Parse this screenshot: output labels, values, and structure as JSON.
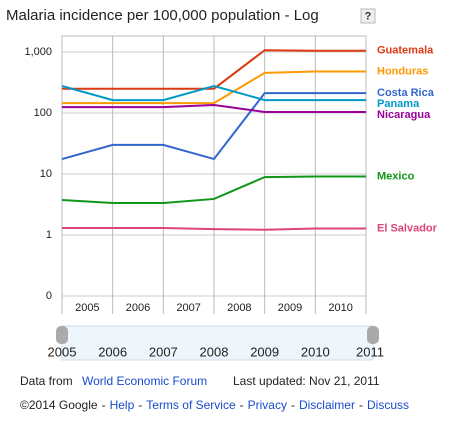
{
  "chart_data": {
    "type": "line",
    "title": "Malaria incidence per 100,000 population - Log",
    "help": "?",
    "log_scale": true,
    "grid": true,
    "x": [
      2005,
      2006,
      2007,
      2008,
      2009,
      2010,
      2011
    ],
    "xlim": [
      2005,
      2011
    ],
    "xticks": [
      2005,
      2006,
      2007,
      2008,
      2009,
      2010
    ],
    "ylim": [
      0.1,
      1830
    ],
    "yticks": [
      {
        "value": 0.1,
        "label": "0"
      },
      1,
      10,
      100,
      {
        "value": 1000,
        "label": "1,000"
      }
    ],
    "series": [
      {
        "name": "Guatemala",
        "color": "#dc3912",
        "values": [
          250,
          250,
          250,
          250,
          1070,
          1050,
          1050
        ]
      },
      {
        "name": "Honduras",
        "color": "#ff9900",
        "values": [
          145,
          145,
          145,
          145,
          455,
          480,
          480
        ]
      },
      {
        "name": "Costa Rica",
        "color": "#3366cc",
        "values": [
          17.6,
          30,
          30,
          17.6,
          212,
          212,
          212
        ]
      },
      {
        "name": "Panama",
        "color": "#0099c6",
        "values": [
          277,
          163,
          163,
          277,
          163,
          163,
          163
        ]
      },
      {
        "name": "Nicaragua",
        "color": "#990099",
        "values": [
          125,
          125,
          125,
          135,
          104,
          104,
          104
        ]
      },
      {
        "name": "Mexico",
        "color": "#109618",
        "values": [
          3.75,
          3.35,
          3.35,
          3.9,
          8.9,
          9.1,
          9.1
        ]
      },
      {
        "name": "El Salvador",
        "color": "#dd4477",
        "values": [
          1.3,
          1.3,
          1.3,
          1.25,
          1.22,
          1.28,
          1.28
        ]
      }
    ]
  },
  "slider": {
    "labels": [
      2005,
      2006,
      2007,
      2008,
      2009,
      2010,
      2011
    ]
  },
  "footer": {
    "data_from": "Data from",
    "source": "World Economic Forum",
    "updated": "Last updated: Nov 21, 2011",
    "copyright": "©2014 Google",
    "separator": "-",
    "links": [
      "Help",
      "Terms of Service",
      "Privacy",
      "Disclaimer",
      "Discuss"
    ]
  }
}
